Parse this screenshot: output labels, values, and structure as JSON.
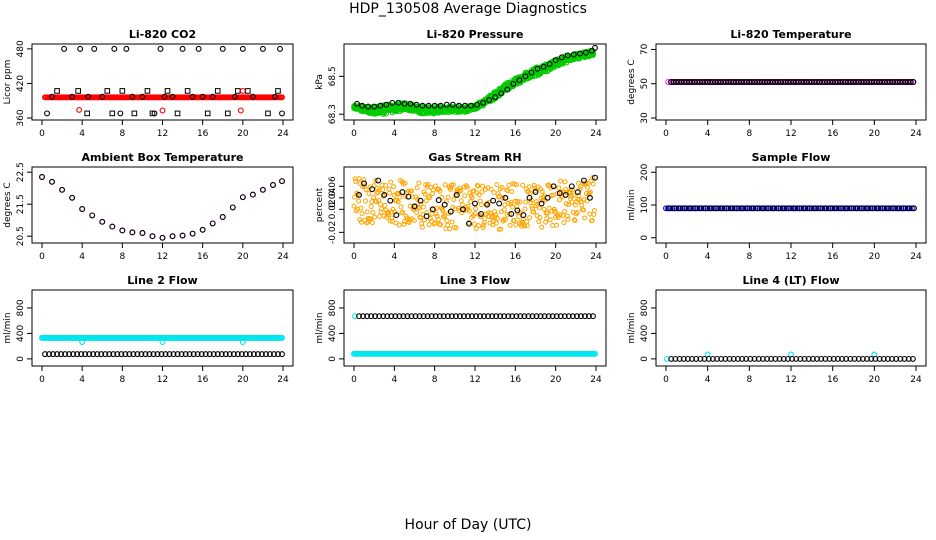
{
  "title": "HDP_130508  Average Diagnostics",
  "xlabel": "Hour of Day (UTC)",
  "colors": {
    "black": "#000000",
    "red": "#ff0000",
    "green": "#00cc00",
    "magenta": "#dd33dd",
    "orange": "#ffa500",
    "blue": "#0000cc",
    "cyan": "#00e5ee"
  },
  "chart_data": [
    {
      "type": "scatter",
      "title": "Li-820 CO2",
      "ylabel": "Licor ppm",
      "xlim": [
        0,
        24
      ],
      "xticks": [
        0,
        4,
        8,
        12,
        16,
        20,
        24
      ],
      "ylim": [
        360,
        485
      ],
      "yticks": [
        360,
        420,
        480
      ],
      "series": [
        {
          "color": "red",
          "marker": "dense-circle",
          "values_desc": "flat",
          "x_start": 0.3,
          "x_end": 23.9,
          "x_step": 0.1,
          "y_const": 396
        },
        {
          "color": "black",
          "marker": "circle",
          "x": [
            0.5,
            1.0,
            2.2,
            3.0,
            3.8,
            4.6,
            5.2,
            6.0,
            7.2,
            7.8,
            8.4,
            9.0,
            10.0,
            11.2,
            11.8,
            12.2,
            13.0,
            14.0,
            15.0,
            15.6,
            16.0,
            17.0,
            18.0,
            19.2,
            20.0,
            21.0,
            22.0,
            23.2,
            23.7,
            23.9
          ],
          "y": [
            368,
            397,
            480,
            397,
            480,
            397,
            480,
            397,
            480,
            368,
            480,
            397,
            397,
            368,
            480,
            397,
            397,
            480,
            397,
            480,
            397,
            397,
            480,
            397,
            480,
            397,
            480,
            397,
            480,
            368
          ]
        },
        {
          "color": "black",
          "marker": "square",
          "x": [
            1.5,
            3.6,
            4.5,
            6.5,
            7.0,
            8.0,
            9.2,
            10.5,
            11.0,
            12.5,
            13.5,
            14.5,
            16.5,
            17.5,
            18.5,
            19.5,
            20.5,
            22.5,
            23.5
          ],
          "y": [
            407,
            407,
            368,
            407,
            368,
            407,
            368,
            407,
            368,
            407,
            368,
            407,
            368,
            407,
            368,
            407,
            407,
            368,
            407
          ]
        },
        {
          "color": "red",
          "marker": "circle",
          "x": [
            3.7,
            12.0,
            19.8,
            20.0
          ],
          "y": [
            374,
            373,
            373,
            407
          ]
        }
      ]
    },
    {
      "type": "scatter",
      "title": "Li-820 Pressure",
      "ylabel": "kPa",
      "xlim": [
        0,
        24
      ],
      "xticks": [
        0,
        4,
        8,
        12,
        16,
        20,
        24
      ],
      "ylim": [
        68.28,
        68.66
      ],
      "yticks": [
        68.3,
        68.5
      ],
      "series": [
        {
          "color": "green",
          "marker": "band",
          "x": [
            0,
            1,
            2,
            3,
            4,
            5,
            6,
            7,
            8,
            9,
            10,
            11,
            12,
            13,
            14,
            15,
            16,
            17,
            18,
            19,
            20,
            21,
            22,
            23,
            23.8
          ],
          "y_low": [
            68.33,
            68.31,
            68.3,
            68.3,
            68.31,
            68.32,
            68.31,
            68.3,
            68.3,
            68.31,
            68.31,
            68.31,
            68.32,
            68.35,
            68.38,
            68.42,
            68.45,
            68.48,
            68.5,
            68.52,
            68.55,
            68.57,
            68.59,
            68.6,
            68.61
          ],
          "y_high": [
            68.35,
            68.34,
            68.34,
            68.35,
            68.36,
            68.36,
            68.35,
            68.34,
            68.34,
            68.34,
            68.34,
            68.34,
            68.35,
            68.38,
            68.42,
            68.46,
            68.49,
            68.52,
            68.55,
            68.57,
            68.59,
            68.61,
            68.62,
            68.63,
            68.64
          ]
        },
        {
          "color": "black",
          "marker": "circle",
          "x": [
            0.3,
            0.8,
            1.4,
            2.0,
            2.6,
            3.2,
            3.8,
            4.4,
            5.0,
            5.6,
            6.2,
            6.8,
            7.4,
            8.0,
            8.6,
            9.2,
            9.8,
            10.4,
            11.0,
            11.6,
            12.2,
            12.8,
            13.4,
            14.0,
            14.6,
            15.2,
            15.8,
            16.4,
            17.0,
            17.6,
            18.2,
            18.8,
            19.4,
            20.0,
            20.6,
            21.2,
            21.8,
            22.4,
            23.0,
            23.6,
            23.9
          ],
          "y": [
            68.355,
            68.345,
            68.34,
            68.34,
            68.345,
            68.35,
            68.36,
            68.36,
            68.355,
            68.355,
            68.35,
            68.345,
            68.345,
            68.345,
            68.345,
            68.35,
            68.35,
            68.345,
            68.345,
            68.345,
            68.35,
            68.36,
            68.375,
            68.39,
            68.41,
            68.43,
            68.46,
            68.48,
            68.5,
            68.52,
            68.54,
            68.55,
            68.565,
            68.585,
            68.6,
            68.61,
            68.615,
            68.62,
            68.625,
            68.635,
            68.65
          ]
        }
      ]
    },
    {
      "type": "scatter",
      "title": "Li-820 Temperature",
      "ylabel": "degrees C",
      "xlim": [
        0,
        24
      ],
      "xticks": [
        0,
        4,
        8,
        12,
        16,
        20,
        24
      ],
      "ylim": [
        30,
        72
      ],
      "yticks": [
        30,
        50,
        70
      ],
      "series": [
        {
          "color": "magenta",
          "marker": "circle",
          "x_start": 0.2,
          "x_end": 23.9,
          "x_step": 0.25,
          "y_const": 51
        },
        {
          "color": "black",
          "marker": "circle",
          "x_start": 0.5,
          "x_end": 23.9,
          "x_step": 0.25,
          "y_const": 51
        }
      ]
    },
    {
      "type": "scatter",
      "title": "Ambient Box Temperature",
      "ylabel": "degrees C",
      "xlim": [
        0,
        24
      ],
      "xticks": [
        0,
        4,
        8,
        12,
        16,
        20,
        24
      ],
      "ylim": [
        20.35,
        22.6
      ],
      "yticks": [
        20.5,
        21.5,
        22.5
      ],
      "series": [
        {
          "color": "magenta",
          "marker": "circle",
          "x": [
            0,
            1,
            2,
            3,
            4,
            5,
            6,
            7,
            8,
            9,
            10,
            11,
            12,
            13,
            14,
            15,
            16,
            17,
            18,
            19,
            20,
            21,
            22,
            23,
            23.9
          ],
          "y": [
            22.35,
            22.2,
            21.95,
            21.7,
            21.35,
            21.15,
            20.95,
            20.8,
            20.68,
            20.62,
            20.6,
            20.5,
            20.45,
            20.5,
            20.52,
            20.58,
            20.7,
            20.9,
            21.1,
            21.4,
            21.72,
            21.8,
            21.95,
            22.1,
            22.22
          ]
        },
        {
          "color": "black",
          "marker": "circle",
          "x": [
            0,
            1,
            2,
            3,
            4,
            5,
            6,
            7,
            8,
            9,
            10,
            11,
            12,
            13,
            14,
            15,
            16,
            17,
            18,
            19,
            20,
            21,
            22,
            23,
            23.9
          ],
          "y": [
            22.35,
            22.2,
            21.95,
            21.7,
            21.35,
            21.15,
            20.95,
            20.8,
            20.68,
            20.62,
            20.6,
            20.5,
            20.45,
            20.5,
            20.52,
            20.58,
            20.7,
            20.9,
            21.1,
            21.4,
            21.72,
            21.8,
            21.95,
            22.1,
            22.22
          ]
        }
      ]
    },
    {
      "type": "scatter",
      "title": "Gas Stream RH",
      "ylabel": "percent",
      "xlim": [
        0,
        24
      ],
      "xticks": [
        0,
        4,
        8,
        12,
        16,
        20,
        24
      ],
      "ylim": [
        -0.035,
        0.09
      ],
      "yticks": [
        -0.02,
        0.02,
        0.04,
        0.06
      ],
      "series": [
        {
          "color": "orange",
          "marker": "noise-band",
          "x_start": 0,
          "x_end": 23.9,
          "y_center": [
            0.035,
            0.035,
            0.03,
            0.028,
            0.028,
            0.026,
            0.025,
            0.025,
            0.025,
            0.026,
            0.028,
            0.03,
            0.035,
            0.04,
            0.045
          ],
          "spread": 0.05
        },
        {
          "color": "black",
          "marker": "circle",
          "x": [
            0.5,
            1.0,
            1.8,
            2.4,
            3.0,
            3.6,
            4.2,
            4.8,
            5.4,
            6.0,
            6.6,
            7.2,
            7.8,
            8.4,
            9.0,
            9.6,
            10.2,
            10.8,
            11.4,
            12.0,
            12.6,
            13.2,
            13.8,
            14.4,
            15.0,
            15.6,
            16.2,
            16.8,
            17.4,
            18.0,
            18.6,
            19.2,
            19.8,
            20.4,
            21.0,
            21.6,
            22.2,
            22.8,
            23.4,
            23.9
          ],
          "y": [
            0.045,
            0.065,
            0.055,
            0.07,
            0.045,
            0.035,
            0.01,
            0.05,
            0.042,
            0.025,
            0.035,
            0.008,
            0.02,
            0.036,
            0.028,
            0.016,
            0.045,
            0.02,
            -0.005,
            0.03,
            0.012,
            0.028,
            0.035,
            0.03,
            0.04,
            0.012,
            0.018,
            0.01,
            0.04,
            0.05,
            0.03,
            0.04,
            0.06,
            0.048,
            0.045,
            0.06,
            0.05,
            0.07,
            0.04,
            0.075
          ]
        }
      ]
    },
    {
      "type": "scatter",
      "title": "Sample Flow",
      "ylabel": "ml/min",
      "xlim": [
        0,
        24
      ],
      "xticks": [
        0,
        4,
        8,
        12,
        16,
        20,
        24
      ],
      "ylim": [
        -10,
        210
      ],
      "yticks": [
        0,
        100,
        200
      ],
      "series": [
        {
          "color": "blue",
          "marker": "circle",
          "x_start": 0.0,
          "x_end": 23.9,
          "x_step": 0.2,
          "y_const": 90
        },
        {
          "color": "black",
          "marker": "circle",
          "x_start": 0.3,
          "x_end": 23.9,
          "x_step": 0.5,
          "y_const": 90
        }
      ]
    },
    {
      "type": "scatter",
      "title": "Line 2 Flow",
      "ylabel": "ml/min",
      "xlim": [
        0,
        24
      ],
      "xticks": [
        0,
        4,
        8,
        12,
        16,
        20,
        24
      ],
      "ylim": [
        -80,
        1050
      ],
      "yticks": [
        0,
        400,
        800
      ],
      "series": [
        {
          "color": "cyan",
          "marker": "circle",
          "x_start": 0.0,
          "x_end": 23.9,
          "x_step": 0.1,
          "y_const": 330
        },
        {
          "color": "cyan",
          "marker": "circle",
          "x": [
            4.0,
            12.0,
            20.0
          ],
          "y": [
            265,
            265,
            265
          ]
        },
        {
          "color": "black",
          "marker": "circle",
          "x_start": 0.3,
          "x_end": 23.9,
          "x_step": 0.4,
          "y_const": 75
        }
      ]
    },
    {
      "type": "scatter",
      "title": "Line 3 Flow",
      "ylabel": "ml/min",
      "xlim": [
        0,
        24
      ],
      "xticks": [
        0,
        4,
        8,
        12,
        16,
        20,
        24
      ],
      "ylim": [
        -80,
        1050
      ],
      "yticks": [
        0,
        400,
        800
      ],
      "series": [
        {
          "color": "cyan",
          "marker": "circle",
          "x_start": 0.0,
          "x_end": 23.9,
          "x_step": 0.1,
          "y_const": 80
        },
        {
          "color": "cyan",
          "marker": "circle",
          "x": [
            0.1
          ],
          "y": [
            670
          ]
        },
        {
          "color": "black",
          "marker": "circle",
          "x_start": 0.5,
          "x_end": 23.9,
          "x_step": 0.4,
          "y_const": 670
        }
      ]
    },
    {
      "type": "scatter",
      "title": "Line 4 (LT) Flow",
      "ylabel": "ml/min",
      "xlim": [
        0,
        24
      ],
      "xticks": [
        0,
        4,
        8,
        12,
        16,
        20,
        24
      ],
      "ylim": [
        -80,
        1050
      ],
      "yticks": [
        0,
        400,
        800
      ],
      "series": [
        {
          "color": "cyan",
          "marker": "circle",
          "x": [
            0.1,
            4.0,
            12.0,
            20.0
          ],
          "y": [
            0,
            70,
            70,
            70
          ]
        },
        {
          "color": "black",
          "marker": "circle",
          "x_start": 0.5,
          "x_end": 23.9,
          "x_step": 0.4,
          "y_const": 0
        }
      ]
    }
  ]
}
